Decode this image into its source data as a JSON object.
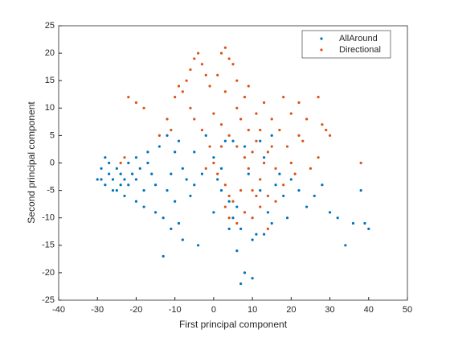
{
  "chart_data": {
    "type": "scatter",
    "xlabel": "First principal component",
    "ylabel": "Second principal component",
    "xlim": [
      -40,
      50
    ],
    "ylim": [
      -25,
      25
    ],
    "xticks": [
      -40,
      -30,
      -20,
      -10,
      0,
      10,
      20,
      30,
      40,
      50
    ],
    "yticks": [
      -25,
      -20,
      -15,
      -10,
      -5,
      0,
      5,
      10,
      15,
      20,
      25
    ],
    "legend": "northeast",
    "series": [
      {
        "name": "AllAround",
        "color": "#0072BD",
        "x": [
          -30,
          -29,
          -28,
          -27,
          -26,
          -25,
          -24,
          -23,
          -22,
          -21,
          -28,
          -27,
          -25,
          -23,
          -20,
          -19,
          -18,
          -17,
          -16,
          -15,
          -22,
          -26,
          -29,
          -24,
          -20,
          -18,
          -15,
          -13,
          -12,
          -11,
          -10,
          -9,
          -12,
          -14,
          -8,
          -7,
          -6,
          -5,
          -10,
          -9,
          -11,
          -8,
          -13,
          -4,
          -5,
          -3,
          -2,
          0,
          1,
          2,
          3,
          4,
          5,
          6,
          7,
          8,
          9,
          10,
          11,
          12,
          13,
          14,
          15,
          16,
          17,
          18,
          19,
          20,
          22,
          24,
          26,
          28,
          30,
          32,
          34,
          36,
          39,
          40,
          38,
          8,
          7,
          10,
          4,
          6,
          13,
          -20,
          -17,
          2,
          5,
          0,
          12,
          15
        ],
        "values": [
          -3,
          -1,
          -4,
          -2,
          -3,
          -1,
          -2,
          -3,
          -4,
          -2,
          1,
          0,
          -5,
          -6,
          -3,
          -1,
          -5,
          0,
          -2,
          -4,
          0,
          -5,
          -3,
          -4,
          -7,
          -8,
          -9,
          -10,
          -5,
          -2,
          2,
          4,
          5,
          3,
          -1,
          -3,
          -6,
          -4,
          -7,
          -11,
          -12,
          -14,
          -17,
          -15,
          2,
          -2,
          5,
          1,
          -3,
          -1,
          4,
          -7,
          -10,
          -8,
          -12,
          3,
          -2,
          -14,
          -13,
          -5,
          1,
          -9,
          -11,
          -4,
          -2,
          -6,
          -10,
          -3,
          -5,
          -8,
          -6,
          -4,
          -9,
          -10,
          -15,
          -11,
          -11,
          -12,
          -5,
          -20,
          -22,
          -21,
          -12,
          -16,
          -13,
          1,
          2,
          -5,
          4,
          -9,
          4,
          5
        ]
      },
      {
        "name": "Directional",
        "color": "#D95319",
        "x": [
          -5,
          -4,
          -3,
          -6,
          -7,
          -8,
          -9,
          -10,
          -2,
          -1,
          1,
          2,
          3,
          4,
          5,
          6,
          -20,
          -18,
          -22,
          -12,
          -5,
          -3,
          0,
          2,
          4,
          6,
          8,
          9,
          10,
          11,
          12,
          13,
          14,
          15,
          16,
          7,
          5,
          3,
          1,
          0,
          -1,
          -2,
          8,
          10,
          12,
          6,
          4,
          9,
          11,
          13,
          15,
          17,
          18,
          19,
          20,
          21,
          22,
          23,
          24,
          25,
          27,
          28,
          29,
          30,
          27,
          18,
          16,
          14,
          8,
          6,
          3,
          -6,
          -11,
          -14,
          -24,
          -23,
          38,
          10,
          12,
          14,
          4,
          2,
          7,
          9,
          20,
          22,
          3,
          11
        ],
        "values": [
          19,
          20,
          18,
          17,
          15,
          13,
          14,
          12,
          16,
          14,
          16,
          20,
          21,
          19,
          18,
          15,
          11,
          10,
          12,
          8,
          8,
          6,
          9,
          7,
          5,
          3,
          1,
          -1,
          2,
          4,
          -3,
          0,
          -6,
          3,
          -1,
          -5,
          -7,
          -4,
          -2,
          0,
          3,
          -1,
          -9,
          -10,
          -8,
          -11,
          -6,
          6,
          9,
          11,
          8,
          6,
          12,
          3,
          0,
          -2,
          5,
          4,
          8,
          -1,
          1,
          7,
          6,
          5,
          12,
          -4,
          -7,
          2,
          12,
          10,
          13,
          10,
          6,
          5,
          0,
          1,
          0,
          -5,
          6,
          -12,
          -10,
          3,
          8,
          14,
          9,
          11,
          -8,
          -6
        ]
      }
    ]
  }
}
